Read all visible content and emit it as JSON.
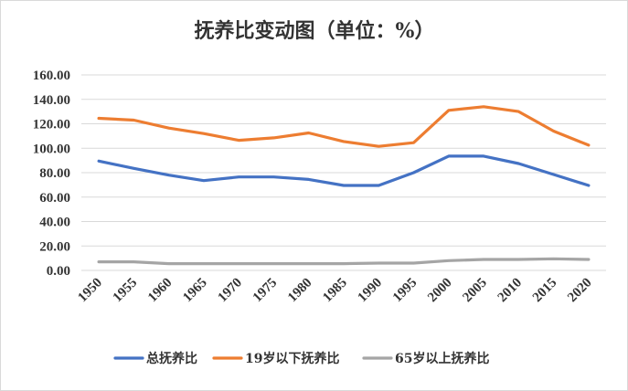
{
  "chart_data": {
    "type": "line",
    "title": "抚养比变动图（单位：%）",
    "x": [
      "1950",
      "1955",
      "1960",
      "1965",
      "1970",
      "1975",
      "1980",
      "1985",
      "1990",
      "1995",
      "2000",
      "2005",
      "2010",
      "2015",
      "2020"
    ],
    "ylim": [
      0,
      160
    ],
    "yticks": [
      "0.00",
      "20.00",
      "40.00",
      "60.00",
      "80.00",
      "100.00",
      "120.00",
      "140.00",
      "160.00"
    ],
    "grid": true,
    "legend_position": "bottom",
    "series": [
      {
        "name": "总抚养比",
        "color": "#4472c4",
        "values": [
          89.5,
          83.5,
          78,
          73.5,
          76.5,
          76.5,
          74.5,
          69.5,
          69.5,
          80,
          93.5,
          93.5,
          87.5,
          78.5,
          69.5
        ]
      },
      {
        "name": "19岁以下抚养比",
        "color": "#ed7d31",
        "values": [
          124.5,
          123,
          116.5,
          112,
          106.5,
          108.5,
          112.5,
          105.5,
          101.5,
          104.5,
          131,
          134,
          130,
          114,
          102.5
        ]
      },
      {
        "name": "65岁以上抚养比",
        "color": "#a5a5a5",
        "values": [
          7,
          7,
          5.5,
          5.5,
          5.5,
          5.5,
          5.5,
          5.5,
          6,
          6,
          8,
          9,
          9,
          9.5,
          9
        ]
      }
    ]
  }
}
